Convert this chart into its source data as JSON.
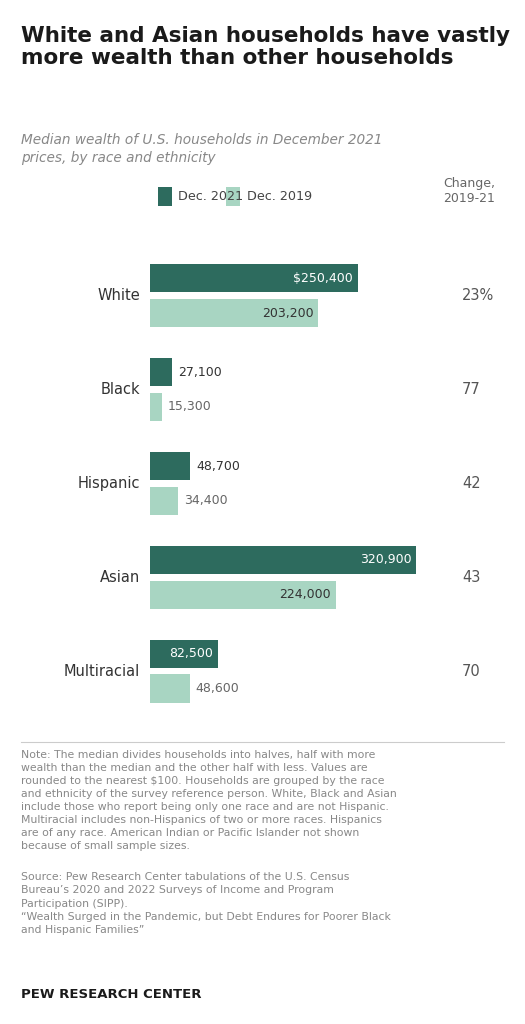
{
  "title": "White and Asian households have vastly\nmore wealth than other households",
  "subtitle": "Median wealth of U.S. households in December 2021\nprices, by race and ethnicity",
  "categories": [
    "White",
    "Black",
    "Hispanic",
    "Asian",
    "Multiracial"
  ],
  "values_2021": [
    250400,
    27100,
    48700,
    320900,
    82500
  ],
  "values_2019": [
    203200,
    15300,
    34400,
    224000,
    48600
  ],
  "labels_2021": [
    "$250,400",
    "27,100",
    "48,700",
    "320,900",
    "82,500"
  ],
  "labels_2019": [
    "203,200",
    "15,300",
    "34,400",
    "224,000",
    "48,600"
  ],
  "changes": [
    "23%",
    "77",
    "42",
    "43",
    "70"
  ],
  "color_2021": "#2d6b5e",
  "color_2019": "#a8d5c2",
  "legend_label_2021": "Dec. 2021",
  "legend_label_2019": "Dec. 2019",
  "note_text": "Note: The median divides households into halves, half with more\nwealth than the median and the other half with less. Values are\nrounded to the nearest $100. Households are grouped by the race\nand ethnicity of the survey reference person. White, Black and Asian\ninclude those who report being only one race and are not Hispanic.\nMultiracial includes non-Hispanics of two or more races. Hispanics\nare of any race. American Indian or Pacific Islander not shown\nbecause of small sample sizes.",
  "source_text": "Source: Pew Research Center tabulations of the U.S. Census\nBureau’s 2020 and 2022 Surveys of Income and Program\nParticipation (SIPP).\n“Wealth Surged in the Pandemic, but Debt Endures for Poorer Black\nand Hispanic Families”",
  "footer_text": "PEW RESEARCH CENTER",
  "max_value": 340000,
  "background_color": "#ffffff"
}
